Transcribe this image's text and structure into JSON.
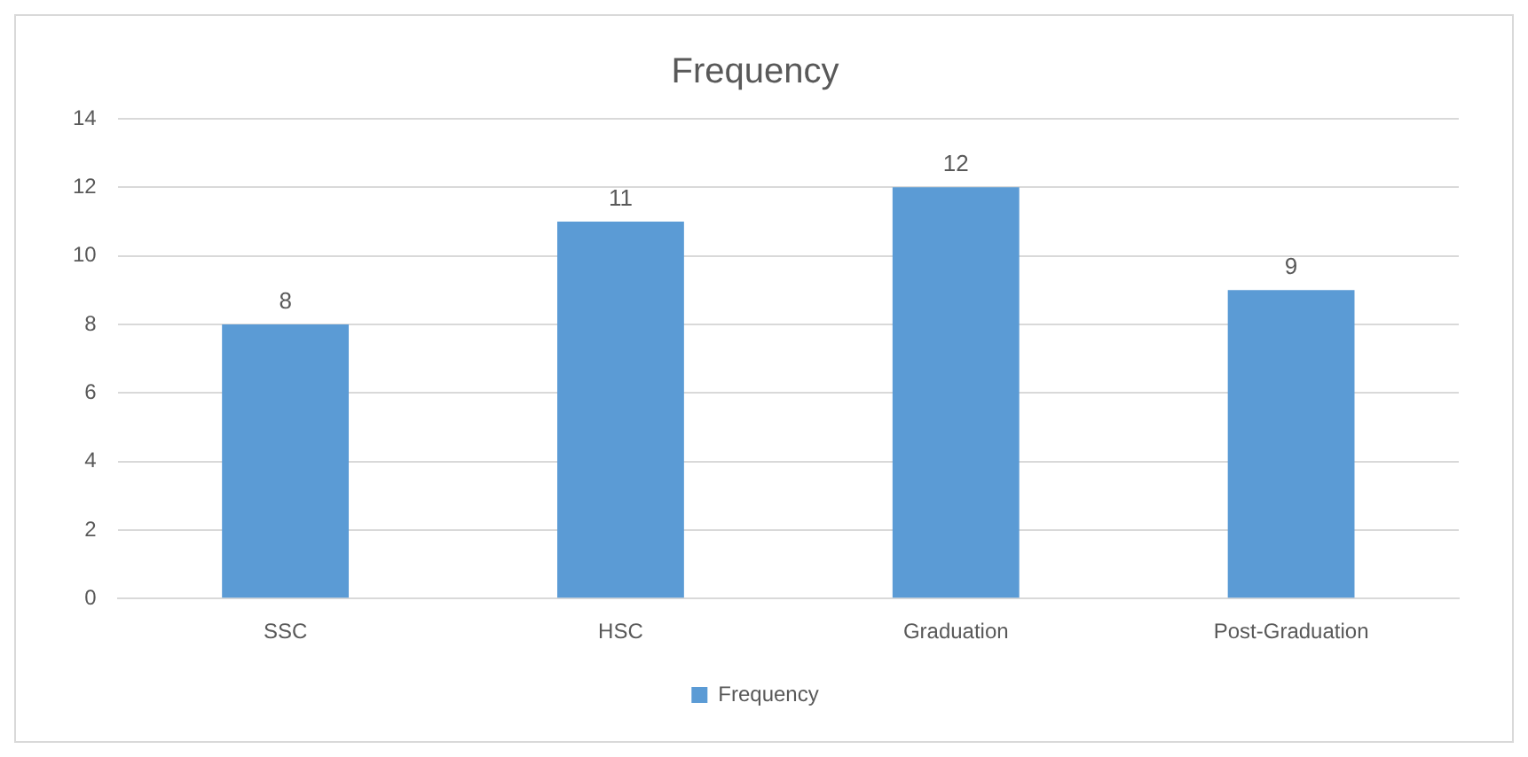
{
  "chart_data": {
    "type": "bar",
    "title": "Frequency",
    "categories": [
      "SSC",
      "HSC",
      "Graduation",
      "Post-Graduation"
    ],
    "series": [
      {
        "name": "Frequency",
        "color": "#5b9bd5",
        "values": [
          8,
          11,
          12,
          9
        ]
      }
    ],
    "ylim": [
      0,
      14
    ],
    "yticks": [
      0,
      2,
      4,
      6,
      8,
      10,
      12,
      14
    ],
    "grid": "y",
    "legend": "bottom",
    "data_labels": true
  }
}
